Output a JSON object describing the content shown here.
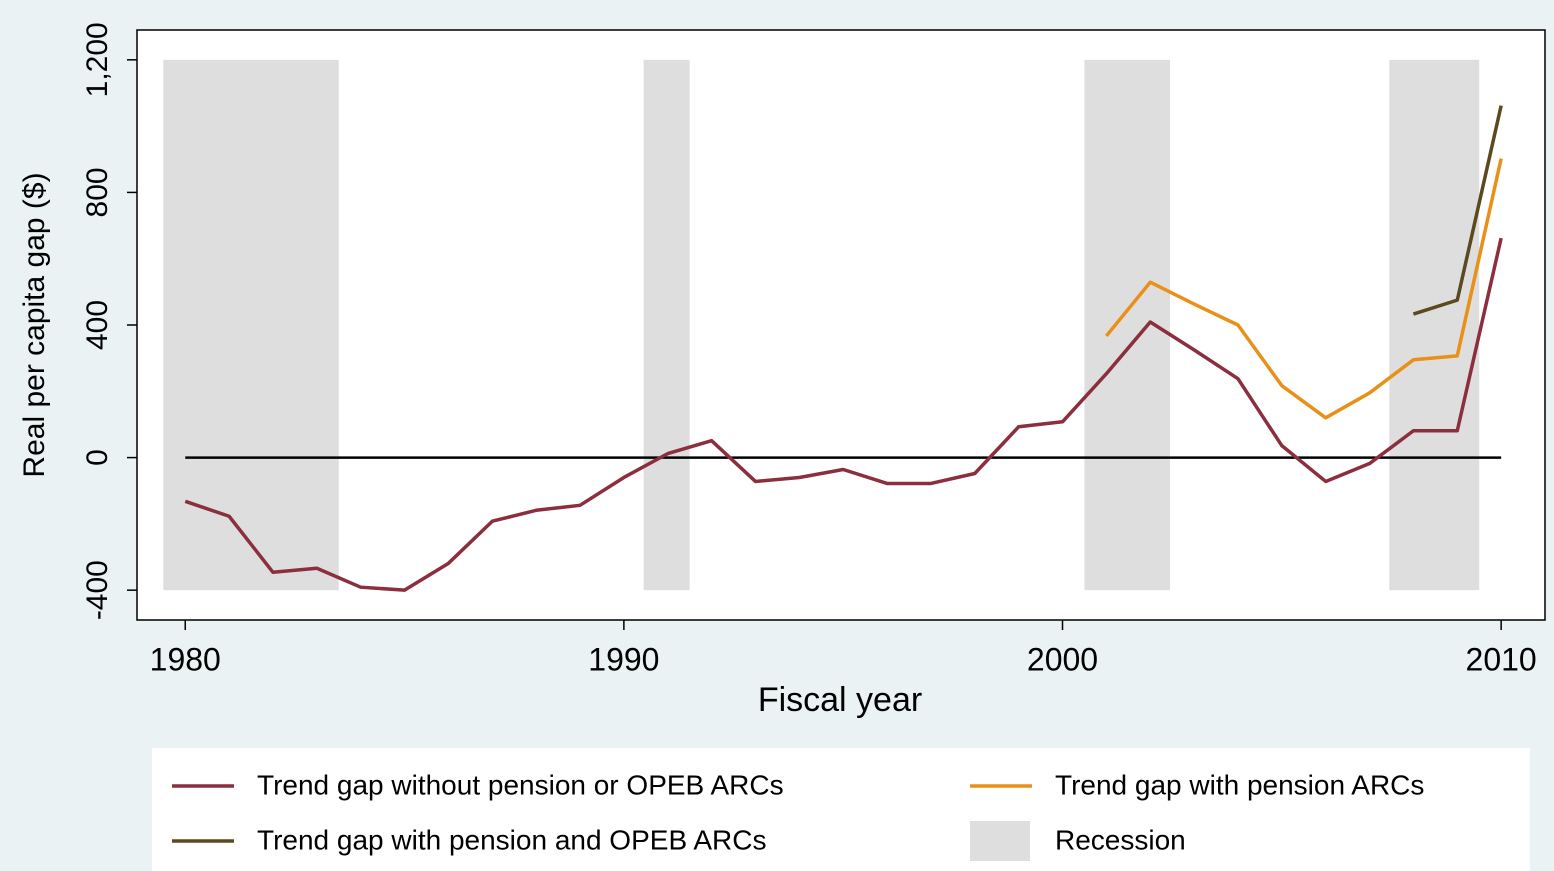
{
  "chart_data": {
    "type": "line",
    "x_label": "Fiscal year",
    "y_label": "Real per capita gap ($)",
    "x": [
      1980,
      1981,
      1982,
      1983,
      1984,
      1985,
      1986,
      1987,
      1988,
      1989,
      1990,
      1991,
      1992,
      1993,
      1994,
      1995,
      1996,
      1997,
      1998,
      1999,
      2000,
      2001,
      2002,
      2003,
      2004,
      2005,
      2006,
      2007,
      2008,
      2009,
      2010
    ],
    "series": [
      {
        "name": "Trend gap without pension or OPEB ARCs",
        "color": "#8b2e3e",
        "values": [
          -132,
          -177,
          -346,
          -334,
          -391,
          -400,
          -319,
          -192,
          -159,
          -144,
          -60,
          12,
          51,
          -72,
          -60,
          -36,
          -78,
          -78,
          -48,
          93,
          108,
          253,
          409,
          325,
          238,
          36,
          -72,
          -18,
          81,
          81,
          662
        ]
      },
      {
        "name": "Trend gap with pension ARCs",
        "color": "#e8901a",
        "values": [
          null,
          null,
          null,
          null,
          null,
          null,
          null,
          null,
          null,
          null,
          null,
          null,
          null,
          null,
          null,
          null,
          null,
          null,
          null,
          null,
          null,
          367,
          529,
          463,
          400,
          217,
          120,
          195,
          295,
          307,
          902
        ]
      },
      {
        "name": "Trend gap with pension and OPEB ARCs",
        "color": "#5a4a1e",
        "values": [
          null,
          null,
          null,
          null,
          null,
          null,
          null,
          null,
          null,
          null,
          null,
          null,
          null,
          null,
          null,
          null,
          null,
          null,
          null,
          null,
          null,
          null,
          null,
          null,
          null,
          null,
          null,
          null,
          433,
          475,
          1062
        ]
      }
    ],
    "recession": {
      "name": "Recession",
      "color": "#dedede",
      "periods": [
        [
          1979.5,
          1983.5
        ],
        [
          1990.45,
          1991.5
        ],
        [
          2000.5,
          2002.45
        ],
        [
          2007.45,
          2009.5
        ]
      ]
    },
    "reference_line": 0,
    "xlim": [
      1978.9,
      2011
    ],
    "ylim": [
      -490,
      1290
    ],
    "xticks": [
      1980,
      1990,
      2000,
      2010
    ],
    "yticks": [
      -400,
      0,
      400,
      800,
      {
        "value": 1200,
        "label": "1,200"
      }
    ]
  }
}
